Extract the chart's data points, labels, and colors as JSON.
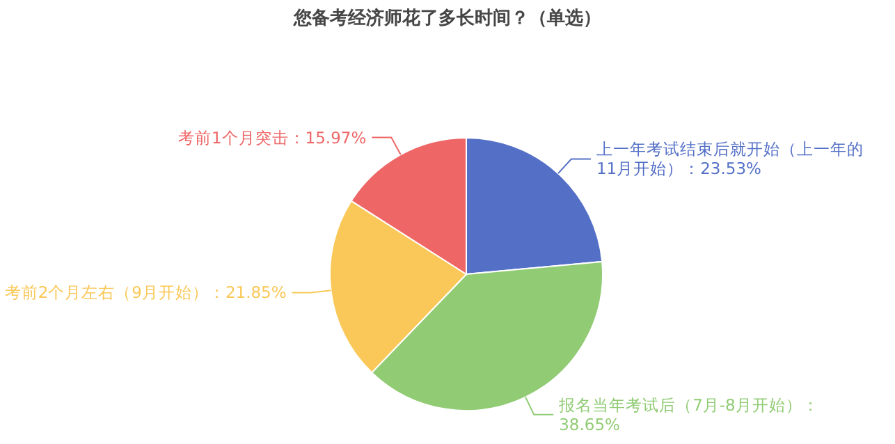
{
  "chart_data": {
    "type": "pie",
    "title": "您备考经济师花了多长时间？（单选）",
    "categories": [
      "上一年考试结束后就开始（上一年的11月开始）",
      "报名当年考试后（7月-8月开始）",
      "考前2个月左右（9月开始）",
      "考前1个月突击"
    ],
    "values": [
      23.53,
      38.65,
      21.85,
      15.97
    ],
    "value_labels": [
      "：23.53%",
      "：38.65%",
      "：21.85%",
      "：15.97%"
    ],
    "colors": [
      "#5470c6",
      "#91cc75",
      "#fac858",
      "#ee6666"
    ]
  }
}
